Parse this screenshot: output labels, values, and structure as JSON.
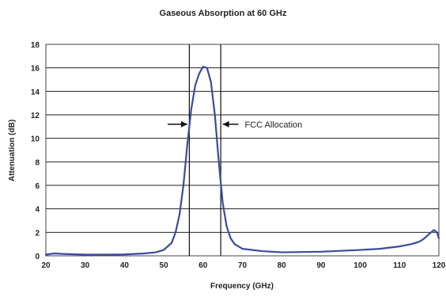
{
  "chart_data": {
    "type": "line",
    "title": "Gaseous Absorption at 60 GHz",
    "xlabel": "Frequency (GHz)",
    "ylabel": "Attenuation (dB)",
    "xlim": [
      20,
      120
    ],
    "ylim": [
      0,
      18
    ],
    "x_ticks": [
      "20",
      "30",
      "40",
      "50",
      "60",
      "70",
      "80",
      "90",
      "100",
      "110",
      "120"
    ],
    "y_ticks": [
      "0",
      "2",
      "4",
      "6",
      "8",
      "10",
      "12",
      "14",
      "16",
      "18"
    ],
    "grid": "horizontal",
    "colors": {
      "line": "#3d4a9c",
      "grid": "#222222",
      "marker": "#111111"
    },
    "series": [
      {
        "x": [
          20,
          22,
          25,
          30,
          35,
          40,
          45,
          48,
          50,
          52,
          53,
          54,
          55,
          56,
          57,
          58,
          59,
          60,
          61,
          62,
          63,
          64,
          65,
          66,
          67,
          68,
          70,
          75,
          80,
          90,
          100,
          105,
          110,
          113,
          115,
          116,
          117,
          118,
          118.75,
          119.5,
          120
        ],
        "y": [
          0.1,
          0.2,
          0.15,
          0.1,
          0.1,
          0.12,
          0.2,
          0.3,
          0.5,
          1.1,
          2.0,
          3.5,
          6.0,
          9.5,
          12.5,
          14.5,
          15.5,
          16.1,
          16.0,
          14.8,
          12.0,
          8.0,
          4.5,
          2.5,
          1.5,
          1.0,
          0.6,
          0.4,
          0.3,
          0.35,
          0.5,
          0.6,
          0.8,
          1.0,
          1.2,
          1.4,
          1.7,
          2.0,
          2.2,
          2.0,
          1.5
        ]
      }
    ],
    "vertical_markers": [
      56.5,
      64.5
    ],
    "annotation": {
      "text": "FCC Allocation",
      "left_arrow_from_x": 51,
      "left_arrow_to_x": 56,
      "right_arrow_from_x": 69,
      "right_arrow_to_x": 65,
      "y": 11.2
    }
  }
}
